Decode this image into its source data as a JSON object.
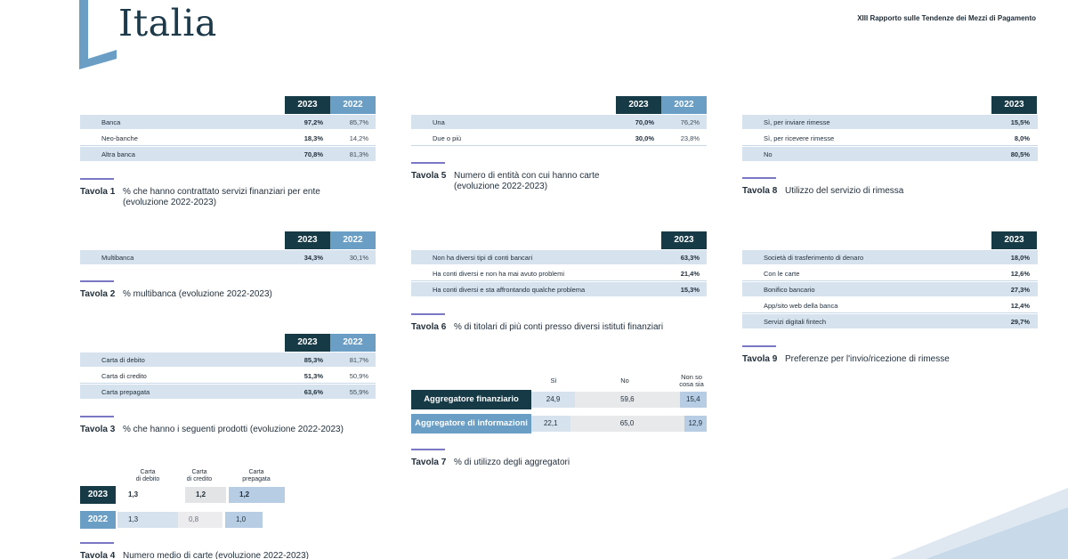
{
  "header": {
    "country": "Italia",
    "report": "XIII Rapporto sulle Tendenze dei Mezzi di Pagamento"
  },
  "colors": {
    "dark": "#173a47",
    "light": "#6b9ec5",
    "shade": "#d6e3ef",
    "rule": "#7a78c4"
  },
  "t1": {
    "y1": "2023",
    "y2": "2022",
    "rows": [
      {
        "label": "Banca",
        "v1": "97,2%",
        "v2": "85,7%"
      },
      {
        "label": "Neo-banche",
        "v1": "18,3%",
        "v2": "14,2%"
      },
      {
        "label": "Altra banca",
        "v1": "70,8%",
        "v2": "81,3%"
      }
    ],
    "num": "Tavola 1",
    "caption": "% che hanno contrattato servizi finanziari per ente (evoluzione 2022-2023)"
  },
  "t2": {
    "y1": "2023",
    "y2": "2022",
    "rows": [
      {
        "label": "Multibanca",
        "v1": "34,3%",
        "v2": "30,1%"
      }
    ],
    "num": "Tavola 2",
    "caption": "% multibanca (evoluzione 2022-2023)"
  },
  "t3": {
    "y1": "2023",
    "y2": "2022",
    "rows": [
      {
        "label": "Carta di debito",
        "v1": "85,3%",
        "v2": "81,7%"
      },
      {
        "label": "Carta di credito",
        "v1": "51,3%",
        "v2": "50,9%"
      },
      {
        "label": "Carta prepagata",
        "v1": "63,6%",
        "v2": "55,9%"
      }
    ],
    "num": "Tavola 3",
    "caption": "% che hanno i seguenti prodotti (evoluzione 2022-2023)"
  },
  "t4": {
    "cols": [
      "Carta\ndi debito",
      "Carta\ndi credito",
      "Carta\nprepagata"
    ],
    "rows": [
      {
        "year": "2023",
        "values": [
          "1,3",
          "1,2",
          "1,2"
        ]
      },
      {
        "year": "2022",
        "values": [
          "1,3",
          "0,8",
          "1,0"
        ]
      }
    ],
    "num": "Tavola 4",
    "caption": "Numero medio di carte (evoluzione 2022-2023)"
  },
  "t5": {
    "y1": "2023",
    "y2": "2022",
    "rows": [
      {
        "label": "Una",
        "v1": "70,0%",
        "v2": "76,2%"
      },
      {
        "label": "Due o più",
        "v1": "30,0%",
        "v2": "23,8%"
      }
    ],
    "num": "Tavola 5",
    "caption": "Numero di entità con cui hanno carte (evoluzione 2022-2023)"
  },
  "t6": {
    "y1": "2023",
    "rows": [
      {
        "label": "Non ha diversi tipi di conti bancari",
        "v1": "63,3%"
      },
      {
        "label": "Ha conti diversi e non ha mai avuto problemi",
        "v1": "21,4%"
      },
      {
        "label": "Ha conti diversi e sta affrontando qualche problema",
        "v1": "15,3%"
      }
    ],
    "num": "Tavola 6",
    "caption": "% di titolari di più conti presso diversi istituti finanziari"
  },
  "t7": {
    "cols": [
      "Sì",
      "No",
      "Non so\ncosa sia"
    ],
    "rows": [
      {
        "label": "Aggregatore finanziario",
        "values": [
          24.9,
          59.6,
          15.4
        ],
        "texts": [
          "24,9",
          "59,6",
          "15,4"
        ]
      },
      {
        "label": "Aggregatore di informazioni",
        "values": [
          22.1,
          65.0,
          12.9
        ],
        "texts": [
          "22,1",
          "65,0",
          "12,9"
        ]
      }
    ],
    "num": "Tavola 7",
    "caption": "% di utilizzo degli aggregatori"
  },
  "t8": {
    "y1": "2023",
    "rows": [
      {
        "label": "Sì, per inviare rimesse",
        "v1": "15,5%"
      },
      {
        "label": "Sì, per ricevere rimesse",
        "v1": "8,0%"
      },
      {
        "label": "No",
        "v1": "80,5%"
      }
    ],
    "num": "Tavola 8",
    "caption": "Utilizzo del servizio di rimessa"
  },
  "t9": {
    "y1": "2023",
    "rows": [
      {
        "label": "Società di trasferimento di denaro",
        "v1": "18,0%"
      },
      {
        "label": "Con le carte",
        "v1": "12,6%"
      },
      {
        "label": "Bonifico bancario",
        "v1": "27,3%"
      },
      {
        "label": "App/sito web della banca",
        "v1": "12,4%"
      },
      {
        "label": "Servizi digitali fintech",
        "v1": "29,7%"
      }
    ],
    "num": "Tavola 9",
    "caption": "Preferenze per l'invio/ricezione di rimesse"
  }
}
